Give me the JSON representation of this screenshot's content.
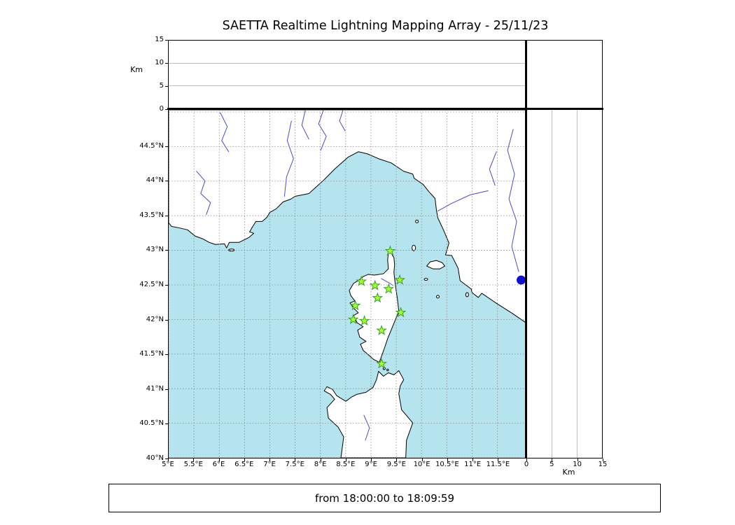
{
  "title": "SAETTA Realtime Lightning Mapping Array - 25/11/23",
  "footer": {
    "time_range": "from 18:00:00 to 18:09:59"
  },
  "axes": {
    "km_label_left": "Km",
    "km_label_bottom": "Km",
    "altitude_ticks": [
      0,
      5,
      10,
      15
    ],
    "altitude_grid": [
      5,
      10
    ],
    "altitude_range": [
      0,
      15
    ],
    "lon_range": [
      5,
      12.06
    ],
    "lat_range": [
      40,
      45.03
    ],
    "lon_ticks": [
      {
        "v": 5,
        "label": "5°E"
      },
      {
        "v": 5.5,
        "label": "5.5°E"
      },
      {
        "v": 6,
        "label": "6°E"
      },
      {
        "v": 6.5,
        "label": "6.5°E"
      },
      {
        "v": 7,
        "label": "7°E"
      },
      {
        "v": 7.5,
        "label": "7.5°E"
      },
      {
        "v": 8,
        "label": "8°E"
      },
      {
        "v": 8.5,
        "label": "8.5°E"
      },
      {
        "v": 9,
        "label": "9°E"
      },
      {
        "v": 9.5,
        "label": "9.5°E"
      },
      {
        "v": 10,
        "label": "10°E"
      },
      {
        "v": 10.5,
        "label": "10.5°E"
      },
      {
        "v": 11,
        "label": "11°E"
      },
      {
        "v": 11.5,
        "label": "11.5°E"
      }
    ],
    "lat_ticks": [
      {
        "v": 44.5,
        "label": "44.5°N"
      },
      {
        "v": 44,
        "label": "44°N"
      },
      {
        "v": 43.5,
        "label": "43.5°N"
      },
      {
        "v": 43,
        "label": "43°N"
      },
      {
        "v": 42.5,
        "label": "42.5°N"
      },
      {
        "v": 42,
        "label": "42°N"
      },
      {
        "v": 41.5,
        "label": "41.5°N"
      },
      {
        "v": 41,
        "label": "41°N"
      },
      {
        "v": 40.5,
        "label": "40.5°N"
      },
      {
        "v": 40,
        "label": "40°N"
      }
    ]
  },
  "colors": {
    "sea": "#b5e3ee",
    "land": "#ffffff",
    "coast": "#000000",
    "river": "#4a4ac8",
    "grid": "#8a8a8a",
    "panel_grid": "#aaaaaa",
    "station_fill": "#adff2f",
    "station_edge": "#33a02c",
    "source_fill": "#1111cc"
  },
  "chart_data": {
    "type": "scatter",
    "title": "SAETTA Realtime Lightning Mapping Array - 25/11/23",
    "date": "25/11/23",
    "time_window": {
      "from": "18:00:00",
      "to": "18:09:59"
    },
    "map_extent": {
      "lon": [
        5,
        12.06
      ],
      "lat": [
        40,
        45.03
      ]
    },
    "altitude_km_range": [
      0,
      15
    ],
    "stations_lon_lat": [
      [
        9.38,
        42.99
      ],
      [
        8.81,
        42.55
      ],
      [
        9.08,
        42.49
      ],
      [
        9.35,
        42.44
      ],
      [
        9.57,
        42.57
      ],
      [
        9.13,
        42.31
      ],
      [
        8.69,
        42.2
      ],
      [
        9.59,
        42.1
      ],
      [
        8.65,
        42.0
      ],
      [
        8.87,
        41.98
      ],
      [
        9.21,
        41.84
      ],
      [
        9.21,
        41.36
      ]
    ],
    "lightning_sources": [
      {
        "lon": 11.97,
        "lat": 42.57,
        "alt_km": 0
      }
    ]
  }
}
